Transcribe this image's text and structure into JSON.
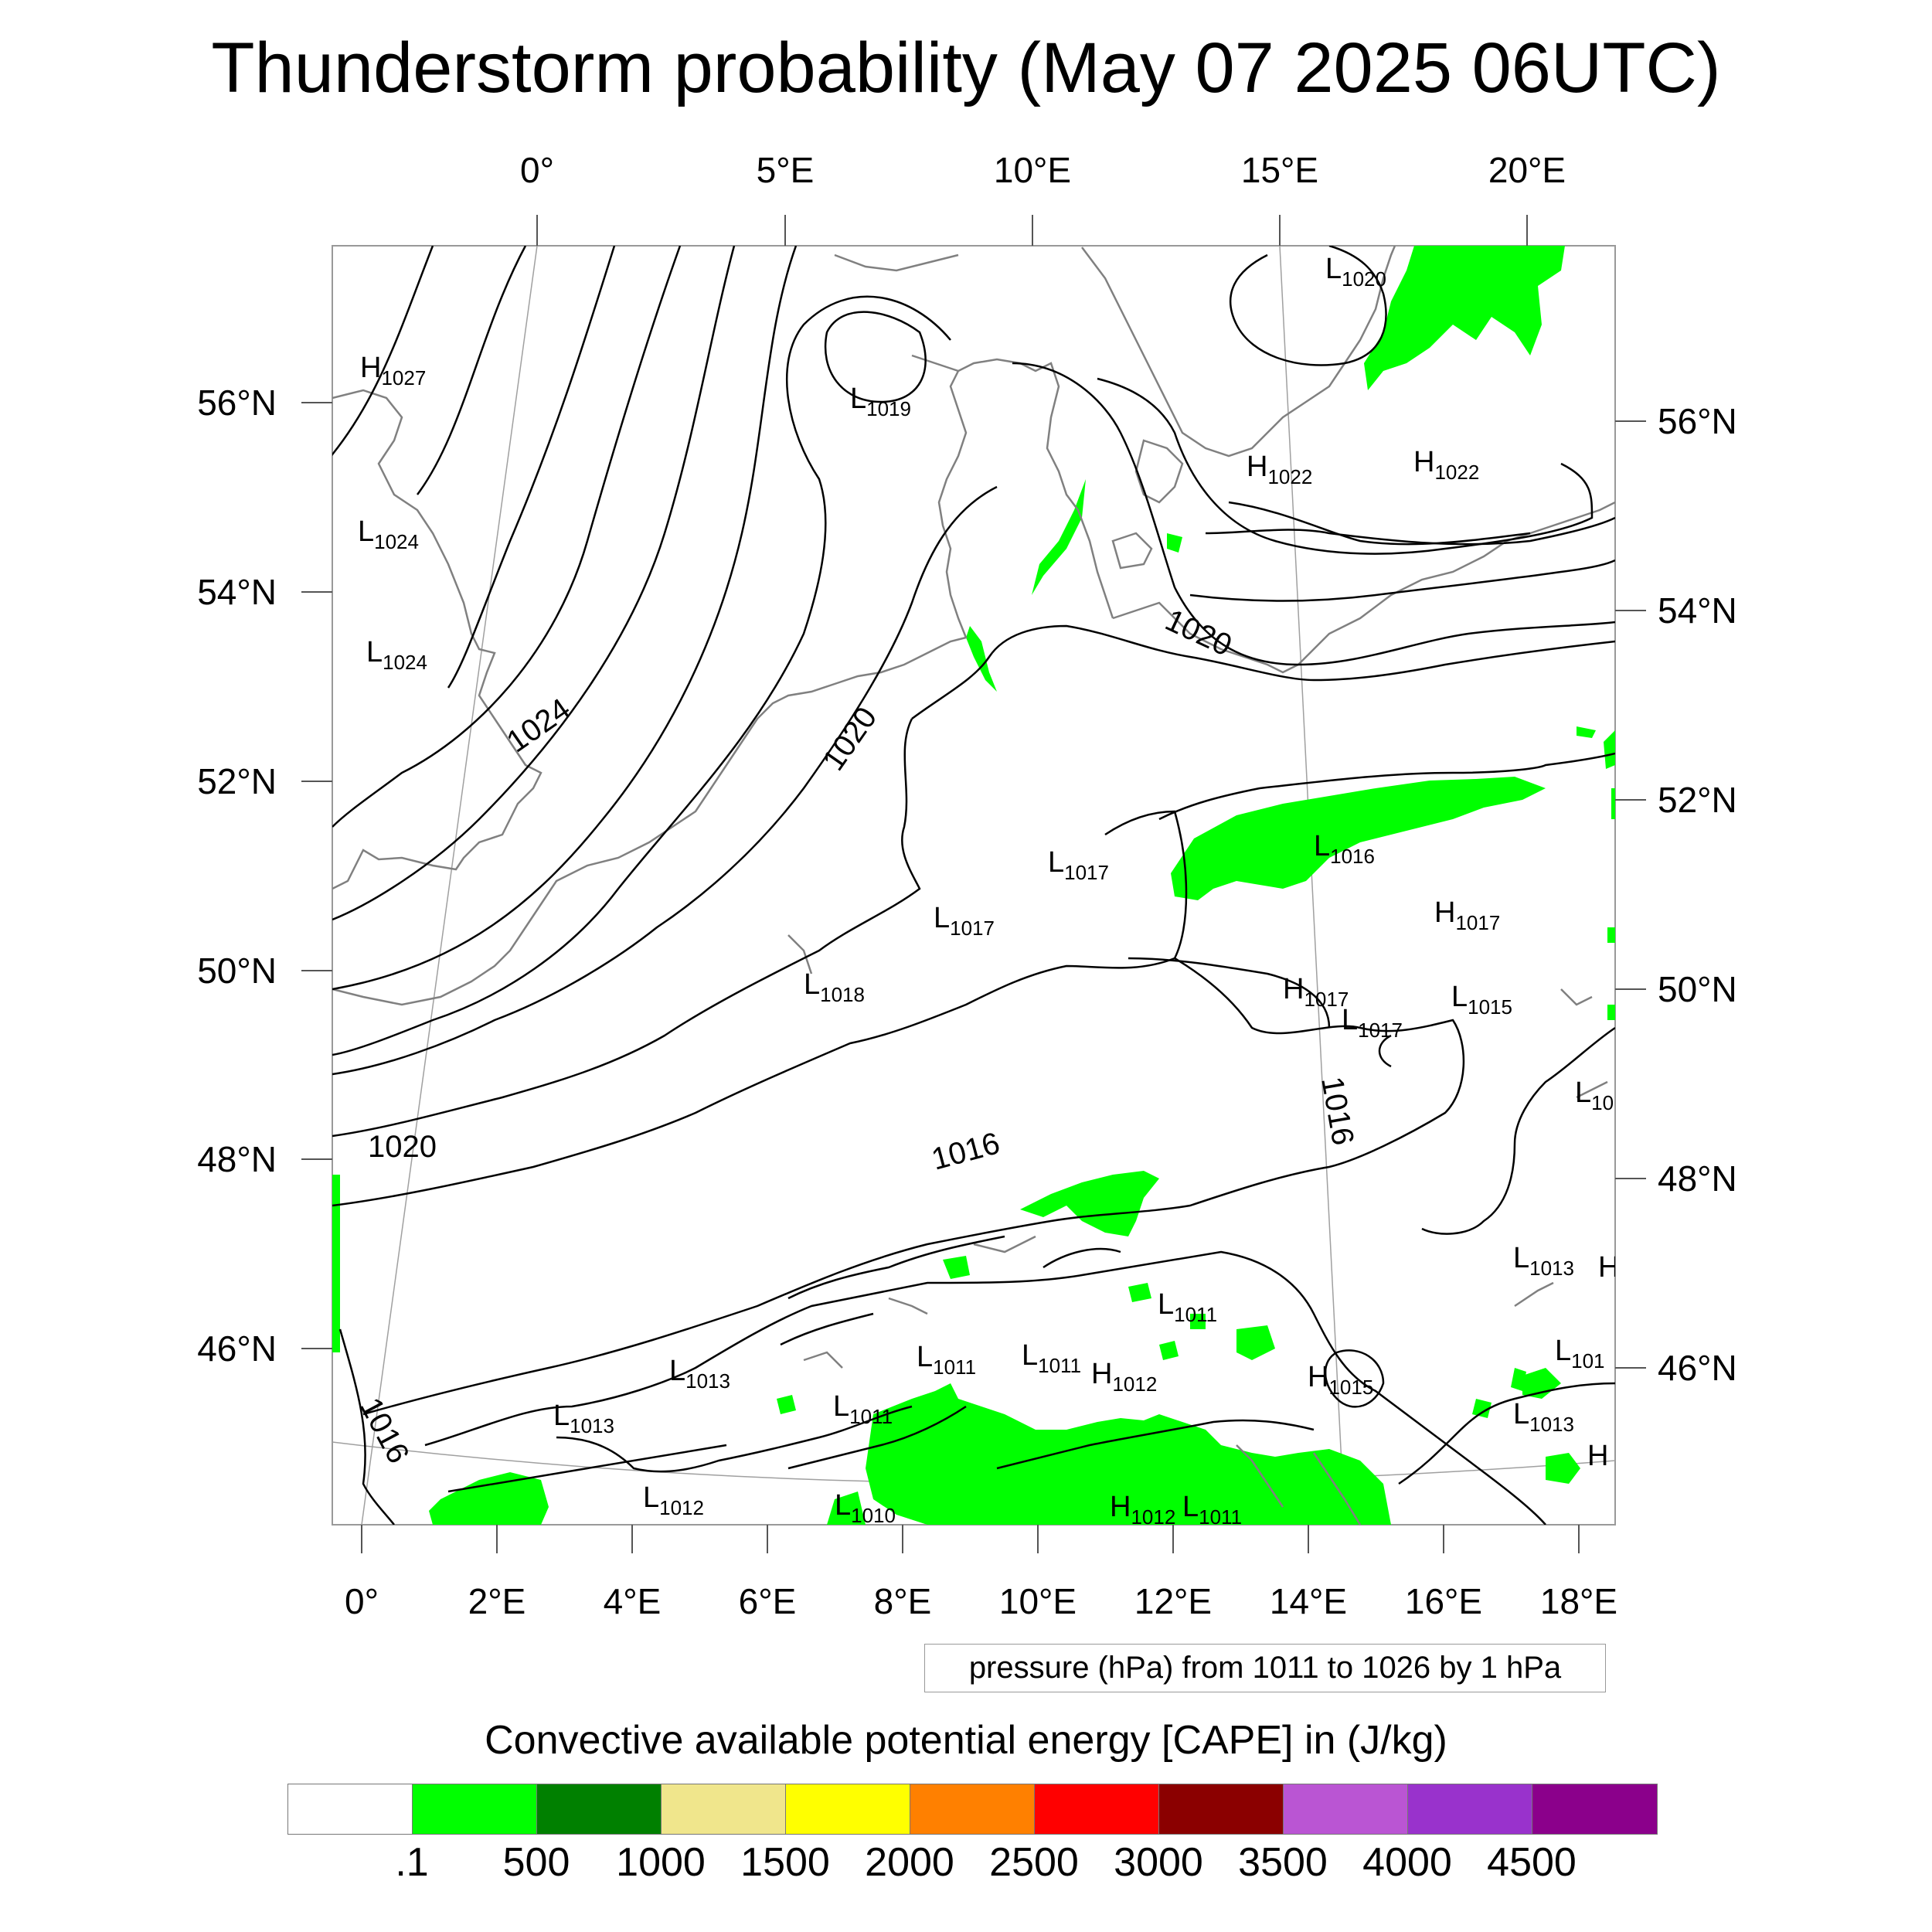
{
  "title": "Thunderstorm probability (May 07 2025 06UTC)",
  "map": {
    "top_lon_labels": [
      "0°",
      "5°E",
      "10°E",
      "15°E",
      "20°E"
    ],
    "bottom_lon_labels": [
      "0°",
      "2°E",
      "4°E",
      "6°E",
      "8°E",
      "10°E",
      "12°E",
      "14°E",
      "16°E",
      "18°E"
    ],
    "left_lat_labels": [
      "56°N",
      "54°N",
      "52°N",
      "50°N",
      "48°N",
      "46°N"
    ],
    "right_lat_labels": [
      "56°N",
      "54°N",
      "52°N",
      "50°N",
      "48°N",
      "46°N"
    ],
    "isobar_labels": [
      "1024",
      "1020",
      "1020",
      "1020",
      "1016",
      "1016",
      "1016"
    ],
    "pressure_centers": [
      {
        "type": "H",
        "value": "1027"
      },
      {
        "type": "L",
        "value": "1024"
      },
      {
        "type": "L",
        "value": "1024"
      },
      {
        "type": "L",
        "value": "1019"
      },
      {
        "type": "L",
        "value": "1020"
      },
      {
        "type": "H",
        "value": "1022"
      },
      {
        "type": "H",
        "value": "1022"
      },
      {
        "type": "L",
        "value": "1017"
      },
      {
        "type": "L",
        "value": "1016"
      },
      {
        "type": "L",
        "value": "1017"
      },
      {
        "type": "H",
        "value": "1017"
      },
      {
        "type": "L",
        "value": "1018"
      },
      {
        "type": "H",
        "value": "1017"
      },
      {
        "type": "L",
        "value": "1017"
      },
      {
        "type": "L",
        "value": "1015"
      },
      {
        "type": "L",
        "value": "10"
      },
      {
        "type": "L",
        "value": "1013"
      },
      {
        "type": "H",
        "value": ""
      },
      {
        "type": "L",
        "value": "1011"
      },
      {
        "type": "L",
        "value": "1011"
      },
      {
        "type": "L",
        "value": "1011"
      },
      {
        "type": "L",
        "value": "1013"
      },
      {
        "type": "H",
        "value": "1012"
      },
      {
        "type": "H",
        "value": "1015"
      },
      {
        "type": "L",
        "value": "101"
      },
      {
        "type": "L",
        "value": "1011"
      },
      {
        "type": "L",
        "value": "1013"
      },
      {
        "type": "L",
        "value": "1013"
      },
      {
        "type": "H",
        "value": ""
      },
      {
        "type": "L",
        "value": "1012"
      },
      {
        "type": "L",
        "value": "1010"
      },
      {
        "type": "H",
        "value": "1012"
      },
      {
        "type": "L",
        "value": "1011"
      }
    ],
    "colors": {
      "isobar": "#000000",
      "coastline": "#808080",
      "graticule": "#a0a0a0",
      "cape_low": "#00ff00"
    }
  },
  "contour_legend": "pressure (hPa) from 1011 to 1026 by 1 hPa",
  "colorbar": {
    "title": "Convective available potential energy [CAPE] in (J/kg)",
    "colors": [
      "#ffffff",
      "#00ff00",
      "#008000",
      "#f0e68c",
      "#ffff00",
      "#ff8000",
      "#ff0000",
      "#8b0000",
      "#ba55d3",
      "#9932cc",
      "#8b008b"
    ],
    "labels": [
      ".1",
      "500",
      "1000",
      "1500",
      "2000",
      "2500",
      "3000",
      "3500",
      "4000",
      "4500"
    ]
  }
}
